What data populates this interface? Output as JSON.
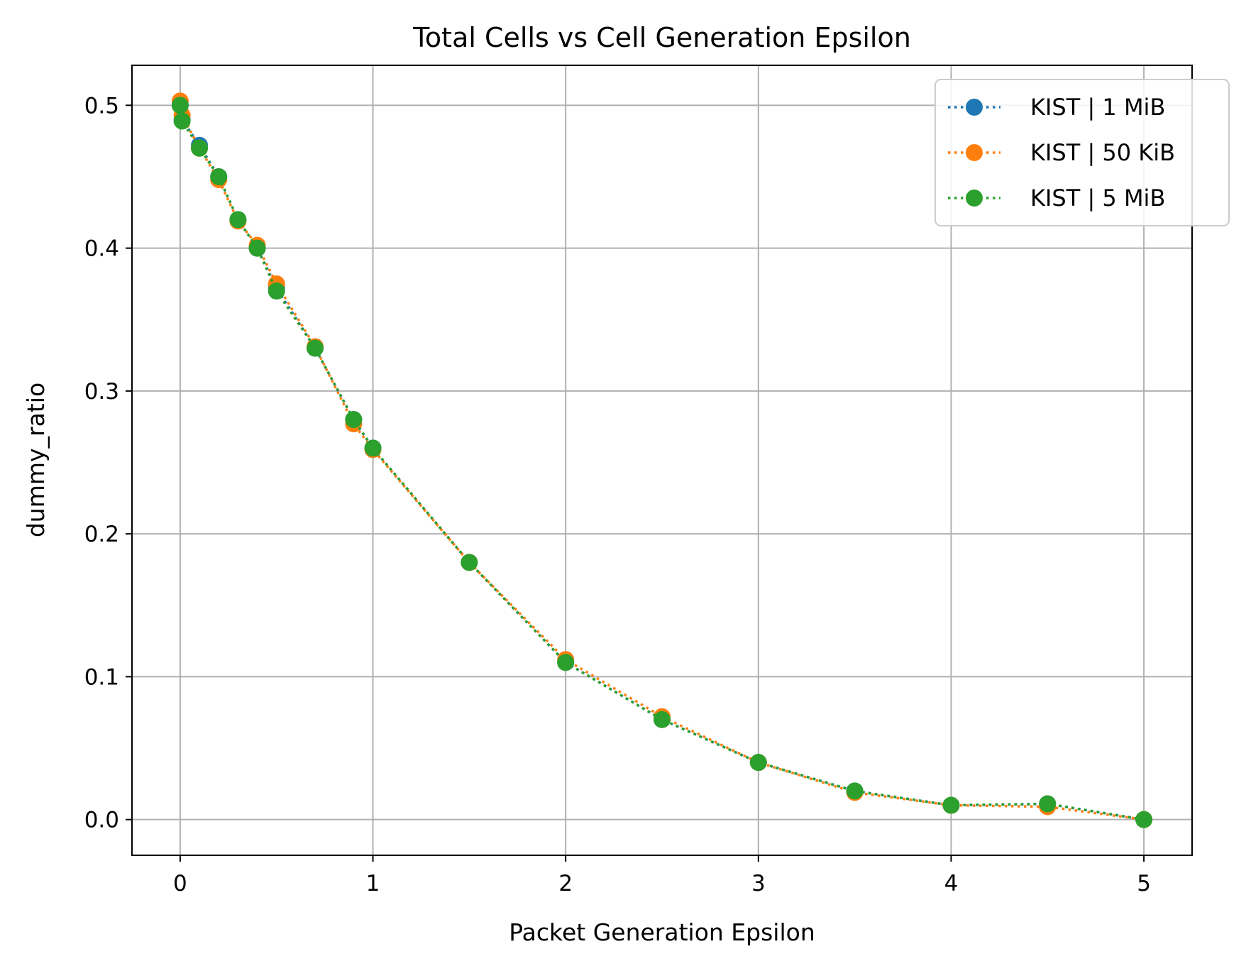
{
  "chart_data": {
    "type": "line",
    "title": "Total Cells vs Cell Generation Epsilon",
    "xlabel": "Packet Generation Epsilon",
    "ylabel": "dummy_ratio",
    "xlim": [
      -0.25,
      5.25
    ],
    "ylim": [
      -0.025,
      0.528
    ],
    "xticks": [
      0,
      1,
      2,
      3,
      4,
      5
    ],
    "xtick_labels": [
      "0",
      "1",
      "2",
      "3",
      "4",
      "5"
    ],
    "yticks": [
      0.0,
      0.1,
      0.2,
      0.3,
      0.4,
      0.5
    ],
    "ytick_labels": [
      "0.0",
      "0.1",
      "0.2",
      "0.3",
      "0.4",
      "0.5"
    ],
    "grid": true,
    "legend_position": "upper right",
    "line_style": "dotted",
    "marker": "circle",
    "series": [
      {
        "name": "KIST | 1 MiB",
        "color": "#1f77b4",
        "x": [
          0,
          0.01,
          0.1,
          0.2,
          0.3,
          0.4,
          0.5,
          0.7,
          0.9,
          1.0,
          1.5,
          2.0,
          2.5,
          3.0,
          3.5,
          4.0,
          4.5,
          5.0
        ],
        "y": [
          0.5,
          0.49,
          0.472,
          0.45,
          0.42,
          0.4,
          0.372,
          0.33,
          0.28,
          0.26,
          0.18,
          0.11,
          0.07,
          0.04,
          0.02,
          0.01,
          0.011,
          0.0
        ]
      },
      {
        "name": "KIST | 50 KiB",
        "color": "#ff7f0e",
        "x": [
          0,
          0.01,
          0.1,
          0.2,
          0.3,
          0.4,
          0.5,
          0.7,
          0.9,
          1.0,
          1.5,
          2.0,
          2.5,
          3.0,
          3.5,
          4.0,
          4.5,
          5.0
        ],
        "y": [
          0.503,
          0.493,
          0.47,
          0.448,
          0.419,
          0.402,
          0.375,
          0.331,
          0.277,
          0.259,
          0.18,
          0.112,
          0.072,
          0.04,
          0.019,
          0.01,
          0.009,
          0.0
        ]
      },
      {
        "name": "KIST | 5 MiB",
        "color": "#2ca02c",
        "x": [
          0,
          0.01,
          0.1,
          0.2,
          0.3,
          0.4,
          0.5,
          0.7,
          0.9,
          1.0,
          1.5,
          2.0,
          2.5,
          3.0,
          3.5,
          4.0,
          4.5,
          5.0
        ],
        "y": [
          0.5,
          0.489,
          0.47,
          0.45,
          0.42,
          0.4,
          0.37,
          0.33,
          0.28,
          0.26,
          0.18,
          0.11,
          0.07,
          0.04,
          0.02,
          0.01,
          0.011,
          0.0
        ]
      }
    ]
  }
}
